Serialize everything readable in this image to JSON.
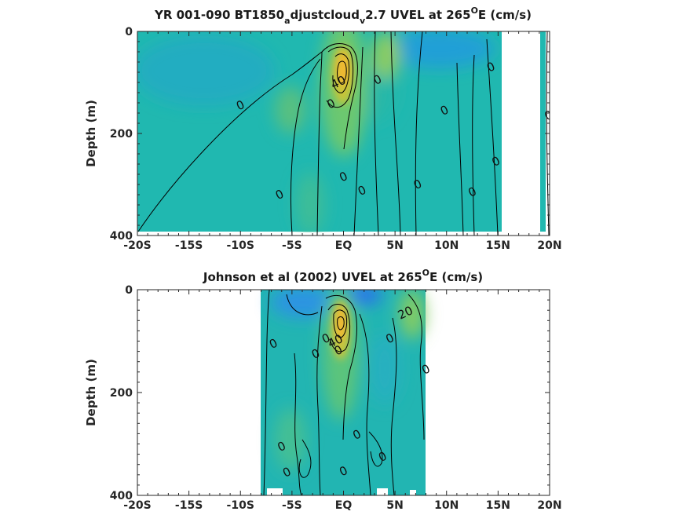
{
  "chart_data": [
    {
      "type": "contour",
      "title": "YR 001-090 BT1850_adjustcloud_v2.7 UVEL at 265^oE (cm/s)",
      "title_parts": {
        "p1": "YR 001-090 BT1850",
        "s1": "a",
        "p2": "djustcloud",
        "s2": "v",
        "p3": "2.7 UVEL at 265",
        "s3": "O",
        "p4": "E (cm/s)"
      },
      "ylabel": "Depth (m)",
      "xlim": [
        -20,
        20
      ],
      "ylim": [
        0,
        400
      ],
      "y_reversed": true,
      "grid": false,
      "colormap": "parula",
      "xtick_values": [
        -20,
        -15,
        -10,
        -5,
        0,
        5,
        10,
        15,
        20
      ],
      "xtick_labels": [
        "-20S",
        "-15S",
        "-10S",
        "-5S",
        "EQ",
        "5N",
        "10N",
        "15N",
        "20N"
      ],
      "ytick_values": [
        0,
        200,
        400
      ],
      "ytick_labels": [
        "0",
        "200",
        "400"
      ],
      "data_extent": {
        "x": [
          -20,
          20
        ],
        "y": [
          0,
          395
        ]
      },
      "missing_regions": [
        {
          "x": [
            15.3,
            19.0
          ],
          "y": [
            0,
            400
          ]
        },
        {
          "x": [
            19.5,
            20.0
          ],
          "y": [
            0,
            400
          ]
        }
      ],
      "cores": [
        {
          "name": "eastward maximum",
          "x": 0.2,
          "y": 80,
          "value": 45
        },
        {
          "name": "westward surface flow",
          "x": 11,
          "y": 15,
          "value": -20
        }
      ],
      "contour_labels": [
        {
          "text": "0",
          "x": -10,
          "y": 145
        },
        {
          "text": "0",
          "x": -6.2,
          "y": 320
        },
        {
          "text": "0",
          "x": -1.2,
          "y": 142
        },
        {
          "text": "0",
          "x": 0,
          "y": 285
        },
        {
          "text": "0",
          "x": 1.8,
          "y": 312
        },
        {
          "text": "0",
          "x": 3.3,
          "y": 95
        },
        {
          "text": "0",
          "x": 7.2,
          "y": 300
        },
        {
          "text": "0",
          "x": 9.8,
          "y": 155
        },
        {
          "text": "0",
          "x": 12.5,
          "y": 315
        },
        {
          "text": "0",
          "x": 14.3,
          "y": 70
        },
        {
          "text": "0",
          "x": 14.8,
          "y": 255
        },
        {
          "text": "0",
          "x": 19.9,
          "y": 165
        },
        {
          "text": "40",
          "x": -0.5,
          "y": 100
        }
      ]
    },
    {
      "type": "contour",
      "title": "Johnson et al (2002) UVEL at 265^oE (cm/s)",
      "title_parts": {
        "p1": "Johnson et al (2002) UVEL at 265",
        "s1": "O",
        "p2": "E (cm/s)"
      },
      "ylabel": "Depth (m)",
      "xlim": [
        -20,
        20
      ],
      "ylim": [
        0,
        400
      ],
      "y_reversed": true,
      "grid": false,
      "colormap": "parula",
      "xtick_values": [
        -20,
        -15,
        -10,
        -5,
        0,
        5,
        10,
        15,
        20
      ],
      "xtick_labels": [
        "-20S",
        "-15S",
        "-10S",
        "-5S",
        "EQ",
        "5N",
        "10N",
        "15N",
        "20N"
      ],
      "ytick_values": [
        0,
        200,
        400
      ],
      "ytick_labels": [
        "0",
        "200",
        "400"
      ],
      "data_extent": {
        "x": [
          -8,
          8
        ],
        "y": [
          0,
          400
        ]
      },
      "cores": [
        {
          "name": "eastward maximum",
          "x": 0,
          "y": 75,
          "value": 45
        },
        {
          "name": "eastward surface flow",
          "x": 6.5,
          "y": 20,
          "value": 30
        },
        {
          "name": "westward surface flow",
          "x": 1.5,
          "y": 5,
          "value": -30
        }
      ],
      "contour_labels": [
        {
          "text": "0",
          "x": -6.8,
          "y": 105
        },
        {
          "text": "0",
          "x": -2.7,
          "y": 125
        },
        {
          "text": "0",
          "x": -1.7,
          "y": 95
        },
        {
          "text": "0",
          "x": -0.5,
          "y": 118
        },
        {
          "text": "0",
          "x": 4.5,
          "y": 95
        },
        {
          "text": "0",
          "x": 8,
          "y": 155
        },
        {
          "text": "0",
          "x": -6,
          "y": 305
        },
        {
          "text": "0",
          "x": 1.3,
          "y": 282
        },
        {
          "text": "0",
          "x": 3.8,
          "y": 325
        },
        {
          "text": "0",
          "x": -5.5,
          "y": 355
        },
        {
          "text": "0",
          "x": 0,
          "y": 353
        },
        {
          "text": "20",
          "x": 6,
          "y": 45
        },
        {
          "text": "40",
          "x": -0.8,
          "y": 100
        }
      ]
    }
  ]
}
